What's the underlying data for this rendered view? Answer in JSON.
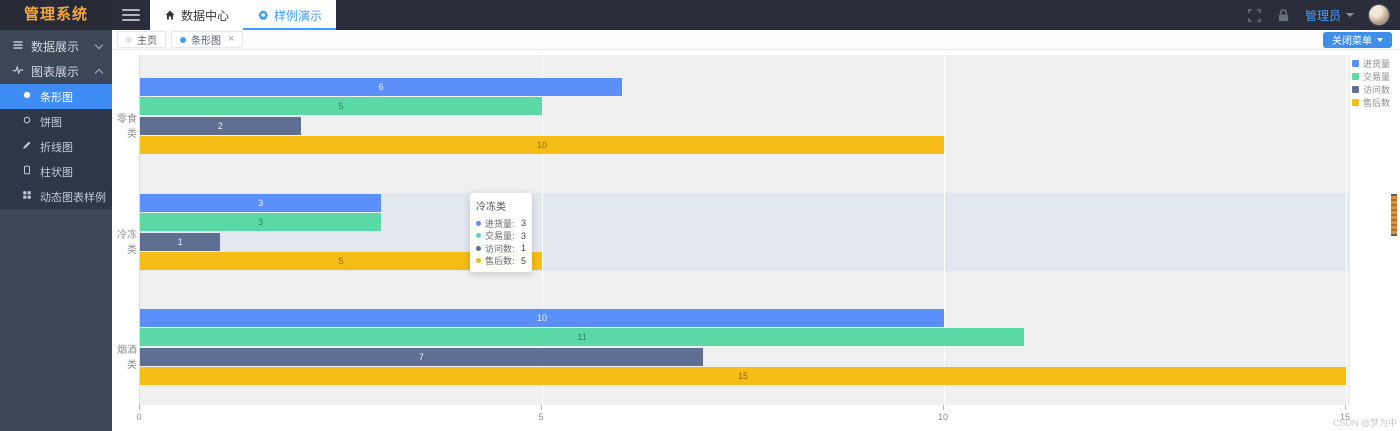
{
  "header": {
    "logo_text": "管理系统",
    "tabs": [
      {
        "label": "数据中心",
        "icon": "home-icon"
      },
      {
        "label": "样例演示",
        "icon": "gear-icon",
        "active": true
      }
    ],
    "username": "管理员"
  },
  "tagbar": {
    "tabs": [
      {
        "label": "主页",
        "active": false
      },
      {
        "label": "条形图",
        "active": true,
        "closable": true
      }
    ],
    "close_icon": "×",
    "close_menu_label": "关闭菜单"
  },
  "sidebar": {
    "items": [
      {
        "label": "数据展示",
        "icon": "list-icon",
        "expanded": false
      },
      {
        "label": "图表展示",
        "icon": "pulse-chart-icon",
        "expanded": true
      }
    ],
    "children": [
      {
        "label": "条形图",
        "icon": "filled-circle-icon",
        "active": true
      },
      {
        "label": "饼图",
        "icon": "hollow-circle-icon"
      },
      {
        "label": "折线图",
        "icon": "pen-icon"
      },
      {
        "label": "柱状图",
        "icon": "column-icon"
      },
      {
        "label": "动态图表样例",
        "icon": "grid-icon"
      }
    ]
  },
  "chart_data": {
    "type": "bar",
    "orientation": "horizontal",
    "categories": [
      "零食类",
      "冷冻类",
      "烟酒类"
    ],
    "series": [
      {
        "name": "进货量",
        "color": "#5B8FF9",
        "values": [
          6,
          3,
          10
        ]
      },
      {
        "name": "交易量",
        "color": "#5AD8A6",
        "values": [
          5,
          3,
          11
        ]
      },
      {
        "name": "访问数",
        "color": "#5D7092",
        "values": [
          2,
          1,
          7
        ]
      },
      {
        "name": "售后数",
        "color": "#F6BD16",
        "values": [
          10,
          5,
          15
        ]
      }
    ],
    "xlim": [
      0,
      15
    ],
    "x_ticks": [
      "0",
      "5",
      "10",
      "15"
    ],
    "grid": true,
    "legend_position": "top-right",
    "highlighted_category": "冷冻类",
    "bar_labels_visible": true
  },
  "tooltip": {
    "title": "冷冻类",
    "rows": [
      {
        "label": "进货量:",
        "value": "3",
        "color": "#5B8FF9"
      },
      {
        "label": "交易量:",
        "value": "3",
        "color": "#5AD8A6"
      },
      {
        "label": "访问数:",
        "value": "1",
        "color": "#5D7092"
      },
      {
        "label": "售后数:",
        "value": "5",
        "color": "#F6BD16"
      }
    ]
  },
  "watermark": "CSDN @梦为中",
  "colors": {
    "accent": "#409EFF",
    "logo": "#F3A73F",
    "header_bg": "#2B2E3A",
    "sidebar_bg": "#394757",
    "submenu_bg": "#2C3848",
    "plot_bg": "#F0F0F0",
    "hover_band": "#E3E7EF",
    "close_menu_btn": "#3F8FE8"
  }
}
